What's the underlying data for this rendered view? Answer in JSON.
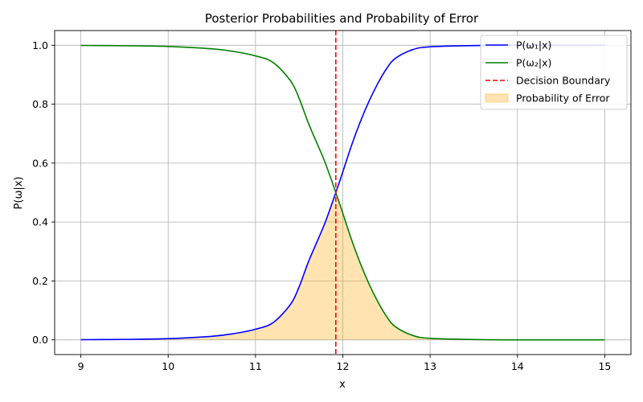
{
  "chart_data": {
    "type": "line",
    "title": "Posterior Probabilities and Probability of Error",
    "xlabel": "x",
    "ylabel": "P(ω|x)",
    "xlim": [
      8.7,
      15.3
    ],
    "ylim": [
      -0.05,
      1.05
    ],
    "xticks": [
      9,
      10,
      11,
      12,
      13,
      14,
      15
    ],
    "yticks": [
      0.0,
      0.2,
      0.4,
      0.6,
      0.8,
      1.0
    ],
    "xtick_labels": [
      "9",
      "10",
      "11",
      "12",
      "13",
      "14",
      "15"
    ],
    "ytick_labels": [
      "0.0",
      "0.2",
      "0.4",
      "0.6",
      "0.8",
      "1.0"
    ],
    "grid": true,
    "legend_position": "top-right",
    "x": [
      9.0,
      9.5,
      10.0,
      10.5,
      10.75,
      11.0,
      11.2,
      11.4,
      11.5,
      11.6,
      11.7,
      11.8,
      11.92,
      12.0,
      12.1,
      12.2,
      12.3,
      12.4,
      12.5,
      12.6,
      12.8,
      13.0,
      13.5,
      14.0,
      14.5,
      15.0
    ],
    "series": [
      {
        "name": "P(ω₁|x)",
        "color": "#0000ff",
        "values": [
          0.0005,
          0.0015,
          0.004,
          0.012,
          0.021,
          0.036,
          0.058,
          0.12,
          0.18,
          0.26,
          0.33,
          0.4,
          0.5,
          0.57,
          0.66,
          0.74,
          0.81,
          0.87,
          0.92,
          0.955,
          0.985,
          0.995,
          0.999,
          1.0,
          1.0,
          1.0
        ]
      },
      {
        "name": "P(ω₂|x)",
        "color": "#008000",
        "values": [
          0.9995,
          0.9985,
          0.996,
          0.988,
          0.979,
          0.964,
          0.942,
          0.88,
          0.82,
          0.74,
          0.67,
          0.6,
          0.5,
          0.43,
          0.34,
          0.26,
          0.19,
          0.13,
          0.08,
          0.045,
          0.015,
          0.005,
          0.001,
          0.0,
          0.0,
          0.0
        ]
      }
    ],
    "decision_boundary": {
      "name": "Decision Boundary",
      "x": 11.92,
      "color": "#ff0000"
    },
    "error_region": {
      "name": "Probability of Error",
      "color": "#ffa500"
    }
  }
}
